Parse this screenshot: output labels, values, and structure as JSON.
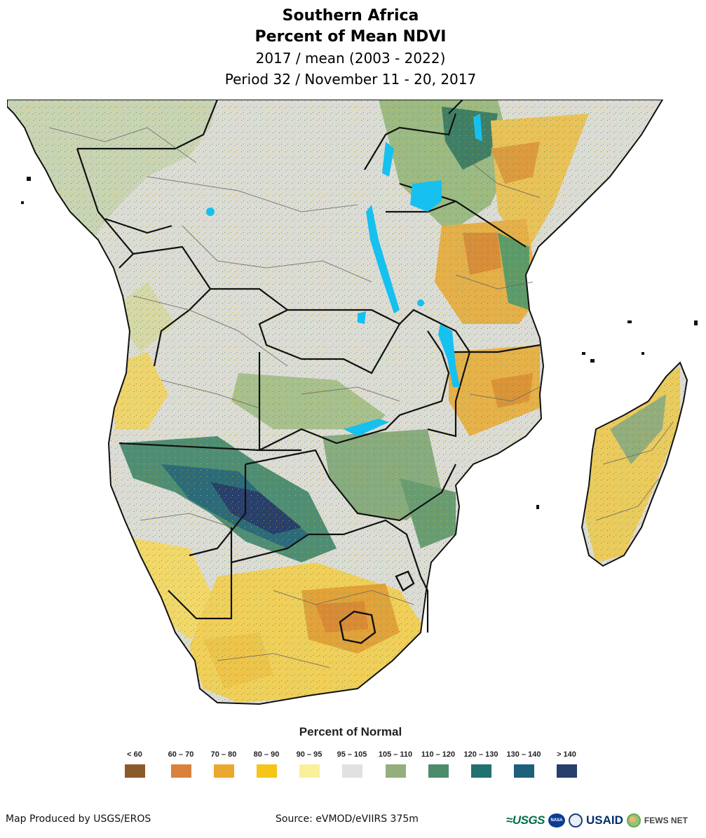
{
  "title": {
    "line1": "Southern Africa",
    "line2": "Percent of Mean NDVI",
    "line3": "2017 / mean (2003 - 2022)",
    "line4": "Period 32 / November 11 - 20, 2017"
  },
  "legend": {
    "title": "Percent of Normal",
    "classes": [
      {
        "label": "< 60",
        "color": "#8b5a2b"
      },
      {
        "label": "60 – 70",
        "color": "#d9823b"
      },
      {
        "label": "70 – 80",
        "color": "#eaa92e"
      },
      {
        "label": "80 – 90",
        "color": "#f5c518"
      },
      {
        "label": "90 – 95",
        "color": "#fbf09a"
      },
      {
        "label": "95 – 105",
        "color": "#e1e1e1"
      },
      {
        "label": "105 – 110",
        "color": "#94ae7d"
      },
      {
        "label": "110 – 120",
        "color": "#4b8c6c"
      },
      {
        "label": "120 – 130",
        "color": "#1f7270"
      },
      {
        "label": "130 – 140",
        "color": "#1e5f7b"
      },
      {
        "label": "> 140",
        "color": "#283e6b"
      }
    ]
  },
  "footer": {
    "producer": "Map Produced by USGS/EROS",
    "source": "Source: eVMOD/eVIIRS 375m"
  },
  "logos": {
    "usgs": "≈USGS",
    "nasa": "NASA",
    "usaid": "USAID",
    "fews": "FEWS NET"
  },
  "colors": {
    "land_base": "#dcdcd6",
    "water": "#16c0ef",
    "boundary": "#111111",
    "admin_boundary": "#666666"
  }
}
